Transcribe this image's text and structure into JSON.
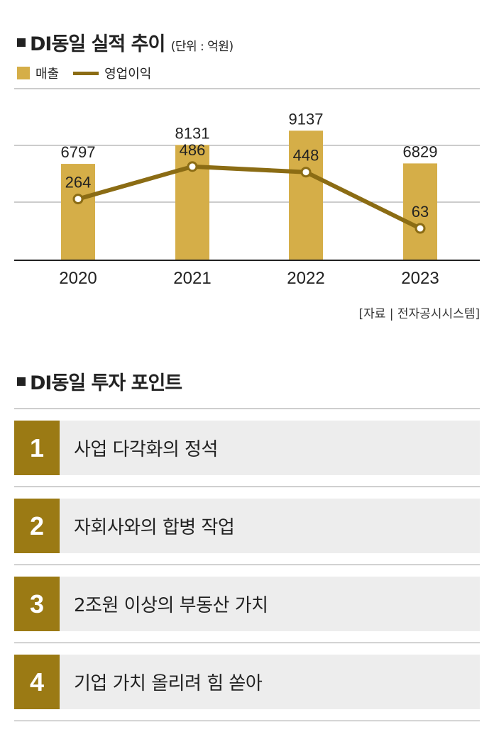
{
  "colors": {
    "bar": "#d5ae48",
    "line": "#8b6c14",
    "num_bg": "#9b7a14",
    "grid": "#9a9a9a",
    "axis": "#222222"
  },
  "header": {
    "title": "DI동일 실적 추이",
    "unit": "(단위 : 억원)"
  },
  "legend": {
    "bar_label": "매출",
    "line_label": "영업이익"
  },
  "chart_data": {
    "type": "bar",
    "categories": [
      "2020",
      "2021",
      "2022",
      "2023"
    ],
    "series": [
      {
        "name": "매출",
        "type": "bar",
        "values": [
          6797,
          8131,
          9137,
          6829
        ]
      },
      {
        "name": "영업이익",
        "type": "line",
        "values": [
          264,
          486,
          448,
          63
        ]
      }
    ],
    "grid": true,
    "legend_position": "top-left"
  },
  "source": "[자료 | 전자공시시스템]",
  "section2": {
    "title": "DI동일 투자 포인트",
    "items": [
      {
        "num": "1",
        "text": "사업 다각화의 정석"
      },
      {
        "num": "2",
        "text": "자회사와의 합병 작업"
      },
      {
        "num": "3",
        "text": "2조원 이상의 부동산 가치"
      },
      {
        "num": "4",
        "text": "기업 가치 올리려 힘 쏟아"
      }
    ]
  }
}
